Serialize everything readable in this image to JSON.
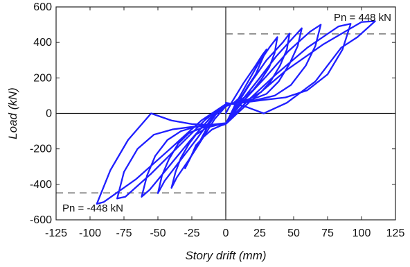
{
  "chart_data": {
    "type": "line",
    "xlabel": "Story drift (mm)",
    "ylabel": "Load (kN)",
    "xlim": [
      -125,
      125
    ],
    "ylim": [
      -600,
      600
    ],
    "xticks": [
      -125,
      -100,
      -75,
      -50,
      -25,
      0,
      25,
      50,
      75,
      100,
      125
    ],
    "yticks": [
      -600,
      -400,
      -200,
      0,
      200,
      400,
      600
    ],
    "grid": false,
    "box": true,
    "zero_lines": true,
    "series": [
      {
        "color": "#1f1fff",
        "x": [
          0,
          5,
          13,
          22,
          27,
          30,
          26,
          22,
          16,
          12,
          6,
          0,
          -6,
          -13,
          -20,
          -27,
          -30,
          -26,
          -22,
          -16,
          -10,
          -4,
          0,
          7,
          15,
          24,
          32,
          38,
          36,
          32,
          26,
          20,
          12,
          6,
          0,
          -8,
          -17,
          -27,
          -36,
          -40,
          -37,
          -33,
          -27,
          -22,
          -14,
          -6,
          0,
          9,
          19,
          30,
          42,
          47,
          45,
          40,
          33,
          26,
          17,
          8,
          0,
          -10,
          -21,
          -33,
          -45,
          -50,
          -47,
          -42,
          -35,
          -27,
          -17,
          -8,
          0,
          11,
          24,
          37,
          50,
          56,
          53,
          47,
          39,
          30,
          18,
          8,
          0,
          -12,
          -27,
          -42,
          -56,
          -62,
          -58,
          -52,
          -43,
          -33,
          -22,
          -10,
          0,
          13,
          30,
          46,
          62,
          70,
          66,
          59,
          48,
          36,
          22,
          10,
          0,
          -15,
          -34,
          -55,
          -74,
          -80,
          -75,
          -65,
          -53,
          -39,
          -24,
          -12,
          0,
          16,
          37,
          60,
          83,
          92,
          86,
          75,
          60,
          44,
          27,
          12,
          0,
          -18,
          -41,
          -66,
          -90,
          -95,
          -85,
          -72,
          -55,
          -40,
          -25,
          -12,
          0,
          19,
          44,
          72,
          100,
          110,
          97,
          85,
          66,
          45,
          28,
          14,
          0
        ],
        "y": [
          0,
          70,
          170,
          270,
          330,
          360,
          290,
          220,
          150,
          100,
          60,
          40,
          10,
          -70,
          -170,
          -260,
          -310,
          -250,
          -180,
          -130,
          -90,
          -70,
          -60,
          50,
          160,
          280,
          370,
          430,
          340,
          260,
          190,
          130,
          80,
          60,
          40,
          -30,
          -140,
          -260,
          -360,
          -420,
          -330,
          -250,
          -170,
          -120,
          -80,
          -65,
          -55,
          60,
          180,
          300,
          400,
          450,
          360,
          270,
          180,
          120,
          80,
          60,
          45,
          -25,
          -140,
          -260,
          -380,
          -450,
          -350,
          -260,
          -170,
          -110,
          -80,
          -65,
          -55,
          65,
          190,
          320,
          430,
          480,
          380,
          280,
          180,
          110,
          75,
          60,
          50,
          -30,
          -160,
          -300,
          -430,
          -470,
          -350,
          -240,
          -150,
          -100,
          -75,
          -65,
          -55,
          70,
          210,
          350,
          460,
          500,
          380,
          270,
          160,
          100,
          75,
          62,
          52,
          -35,
          -180,
          -340,
          -470,
          -480,
          -330,
          -200,
          -120,
          -90,
          -75,
          -65,
          -55,
          70,
          220,
          370,
          490,
          505,
          360,
          220,
          130,
          90,
          75,
          60,
          52,
          -40,
          -200,
          -370,
          -500,
          -510,
          -320,
          -150,
          0,
          -40,
          -60,
          -65,
          -60,
          75,
          240,
          390,
          515,
          520,
          430,
          370,
          180,
          60,
          0,
          40,
          60
        ]
      }
    ],
    "reference_lines": [
      {
        "y": 448,
        "x_from": 0,
        "x_to": 125,
        "label": "Pn = 448 kN",
        "style": "dashed",
        "color": "#777777"
      },
      {
        "y": -448,
        "x_from": -125,
        "x_to": 0,
        "label": "Pn = -448 kN",
        "style": "dashed",
        "color": "#777777"
      }
    ]
  }
}
